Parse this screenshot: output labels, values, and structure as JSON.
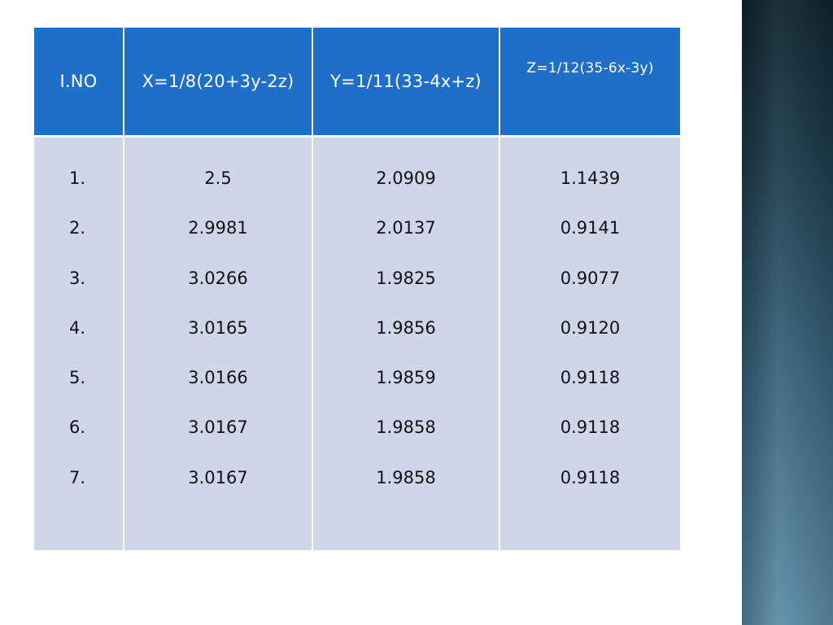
{
  "table": {
    "headers": [
      "I.NO",
      "X=1/8(20+3y-2z)",
      "Y=1/11(33-4x+z)",
      "Z=1/12(35-6x-3y)"
    ],
    "rows": [
      [
        "1.",
        "2.5",
        "2.0909",
        "1.1439"
      ],
      [
        "2.",
        "2.9981",
        "2.0137",
        "0.9141"
      ],
      [
        "3.",
        "3.0266",
        "1.9825",
        "0.9077"
      ],
      [
        "4.",
        "3.0165",
        "1.9856",
        "0.9120"
      ],
      [
        "5.",
        "3.0166",
        "1.9859",
        "0.9118"
      ],
      [
        "6.",
        "3.0167",
        "1.9858",
        "0.9118"
      ],
      [
        "7.",
        "3.0167",
        "1.9858",
        "0.9118"
      ]
    ]
  },
  "colors": {
    "header_bg": "#1f6fc9",
    "body_bg": "#cfd6ea",
    "side_band": "#2c5466"
  }
}
